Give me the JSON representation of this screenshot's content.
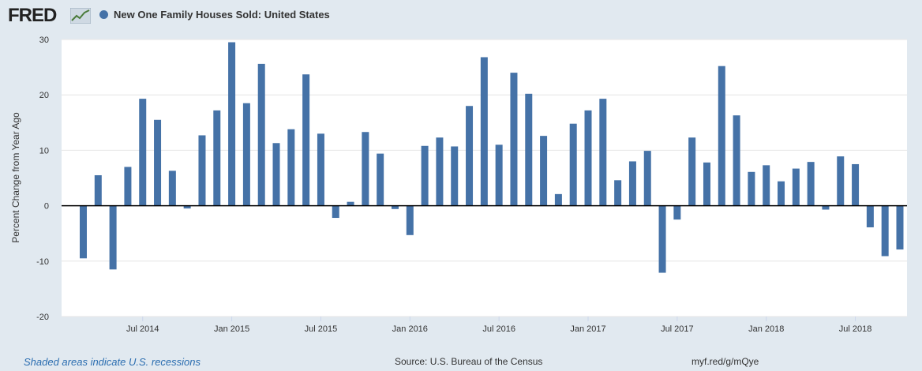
{
  "header": {
    "logo_text": "FRED",
    "logo_icon": "trend-line-icon"
  },
  "footer": {
    "recession_note": "Shaded areas indicate U.S. recessions",
    "source": "Source: U.S. Bureau of the Census",
    "short_url": "myf.red/g/mQye"
  },
  "colors": {
    "bar": "#4572a7",
    "background": "#e1e9f0",
    "plot": "#ffffff"
  },
  "chart_data": {
    "type": "bar",
    "title": "New One Family Houses Sold: United States",
    "ylabel": "Percent Change from Year Ago",
    "xlabel": "",
    "ylim": [
      -20,
      30
    ],
    "yticks": [
      30,
      20,
      10,
      0,
      -10,
      -20
    ],
    "grid": true,
    "legend": "top-left",
    "series": [
      {
        "name": "New One Family Houses Sold: United States",
        "values": [
          -9.5,
          5.5,
          -11.5,
          7,
          19.3,
          15.5,
          6.3,
          -0.5,
          12.7,
          17.2,
          29.5,
          18.5,
          25.6,
          11.3,
          13.8,
          23.7,
          13,
          -2.2,
          0.7,
          13.3,
          9.4,
          -0.6,
          -5.3,
          10.8,
          12.3,
          10.7,
          18,
          26.8,
          11,
          24,
          20.2,
          12.6,
          2.1,
          14.8,
          17.2,
          19.3,
          4.6,
          8,
          9.9,
          -12.1,
          -2.5,
          12.3,
          7.8,
          25.2,
          16.3,
          6.1,
          7.3,
          4.4,
          6.7,
          7.9,
          -0.7,
          8.9,
          7.5,
          -3.9,
          -9.1,
          -7.9
        ]
      }
    ],
    "start_month": "2014-03",
    "x_tick_labels": [
      "Jul 2014",
      "Jan 2015",
      "Jul 2015",
      "Jan 2016",
      "Jul 2016",
      "Jan 2017",
      "Jul 2017",
      "Jan 2018",
      "Jul 2018"
    ],
    "x_tick_indices": [
      4,
      10,
      16,
      22,
      28,
      34,
      40,
      46,
      52
    ]
  }
}
